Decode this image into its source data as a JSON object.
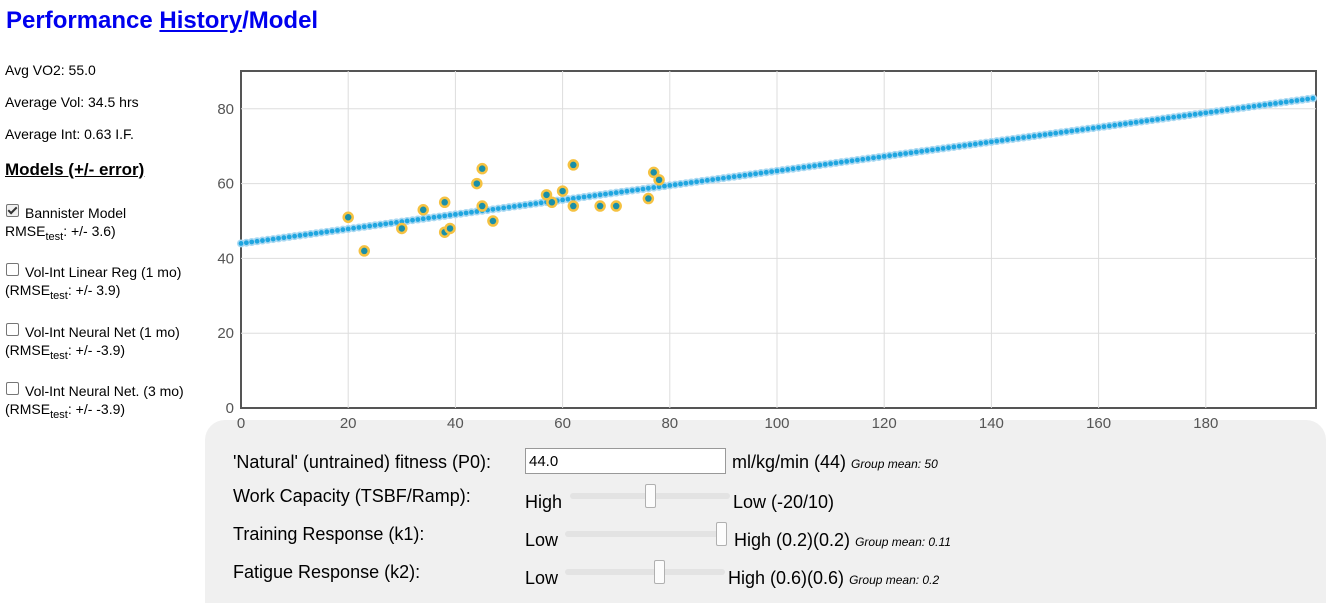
{
  "page": {
    "title_before": "Performance ",
    "title_link": "History",
    "title_after": "/Model"
  },
  "stats": {
    "avg_vo2": "Avg VO2: 55.0",
    "avg_vol": "Average Vol: 34.5 hrs",
    "avg_int": "Average Int: 0.63 I.F."
  },
  "models": {
    "heading": "Models (+/- error)",
    "items": [
      {
        "name": "Bannister Model",
        "metric_prefix": "RMSE",
        "metric_sub": "test",
        "metric_suffix": ": +/- 3.6)",
        "checked": true
      },
      {
        "name": "Vol-Int Linear Reg (1 mo)",
        "metric_prefix": "(RMSE",
        "metric_sub": "test",
        "metric_suffix": ": +/- 3.9)",
        "checked": false
      },
      {
        "name": "Vol-Int Neural Net (1 mo)",
        "metric_prefix": "(RMSE",
        "metric_sub": "test",
        "metric_suffix": ": +/- -3.9)",
        "checked": false
      },
      {
        "name": "Vol-Int Neural Net. (3 mo)",
        "metric_prefix": "(RMSE",
        "metric_sub": "test",
        "metric_suffix": ": +/- -3.9)",
        "checked": false
      }
    ]
  },
  "controls": {
    "p0_label": "'Natural' (untrained) fitness (P0):",
    "p0_value": "44.0",
    "p0_unit": "ml/kg/min (44)",
    "p0_note": "Group mean: 50",
    "wc_label": "Work Capacity (TSBF/Ramp):",
    "wc_low_end": "High",
    "wc_high_end": "Low (-20/10)",
    "wc_level": 0.5,
    "k1_label": "Training Response (k1):",
    "k1_low_end": "Low",
    "k1_high_end": "High (0.2)(0.2)",
    "k1_note": "Group mean: 0.11",
    "k1_level": 1.0,
    "k2_label": "Fatigue Response (k2):",
    "k2_low_end": "Low",
    "k2_high_end": "High (0.6)(0.6)",
    "k2_note": "Group mean: 0.2",
    "k2_level": 0.6
  },
  "chart_data": {
    "type": "scatter",
    "title": "",
    "xlabel": "",
    "ylabel": "",
    "xlim": [
      0,
      200
    ],
    "ylim": [
      0,
      90
    ],
    "x_ticks": [
      0,
      20,
      40,
      60,
      80,
      100,
      120,
      140,
      160,
      180
    ],
    "y_ticks": [
      0,
      20,
      40,
      60,
      80
    ],
    "grid": true,
    "colors": {
      "model": "#1fa6e0",
      "model_halo": "#a8d8f2",
      "obs_fill": "#1a8fa8",
      "obs_ring": "#f5c242"
    },
    "series": [
      {
        "kind": "observed",
        "points": [
          [
            20,
            51
          ],
          [
            23,
            42
          ],
          [
            30,
            48
          ],
          [
            34,
            53
          ],
          [
            38,
            47
          ],
          [
            38,
            55
          ],
          [
            39,
            48
          ],
          [
            44,
            60
          ],
          [
            45,
            64
          ],
          [
            45,
            54
          ],
          [
            47,
            50
          ],
          [
            57,
            57
          ],
          [
            58,
            55
          ],
          [
            60,
            58
          ],
          [
            62,
            65
          ],
          [
            62,
            54
          ],
          [
            67,
            54
          ],
          [
            70,
            54
          ],
          [
            76,
            56
          ],
          [
            77,
            63
          ],
          [
            78,
            61
          ]
        ]
      },
      {
        "kind": "model",
        "x_start": 0,
        "x_end": 200,
        "y_start": 44.0,
        "y_end": 82.8,
        "step": 1
      }
    ]
  }
}
